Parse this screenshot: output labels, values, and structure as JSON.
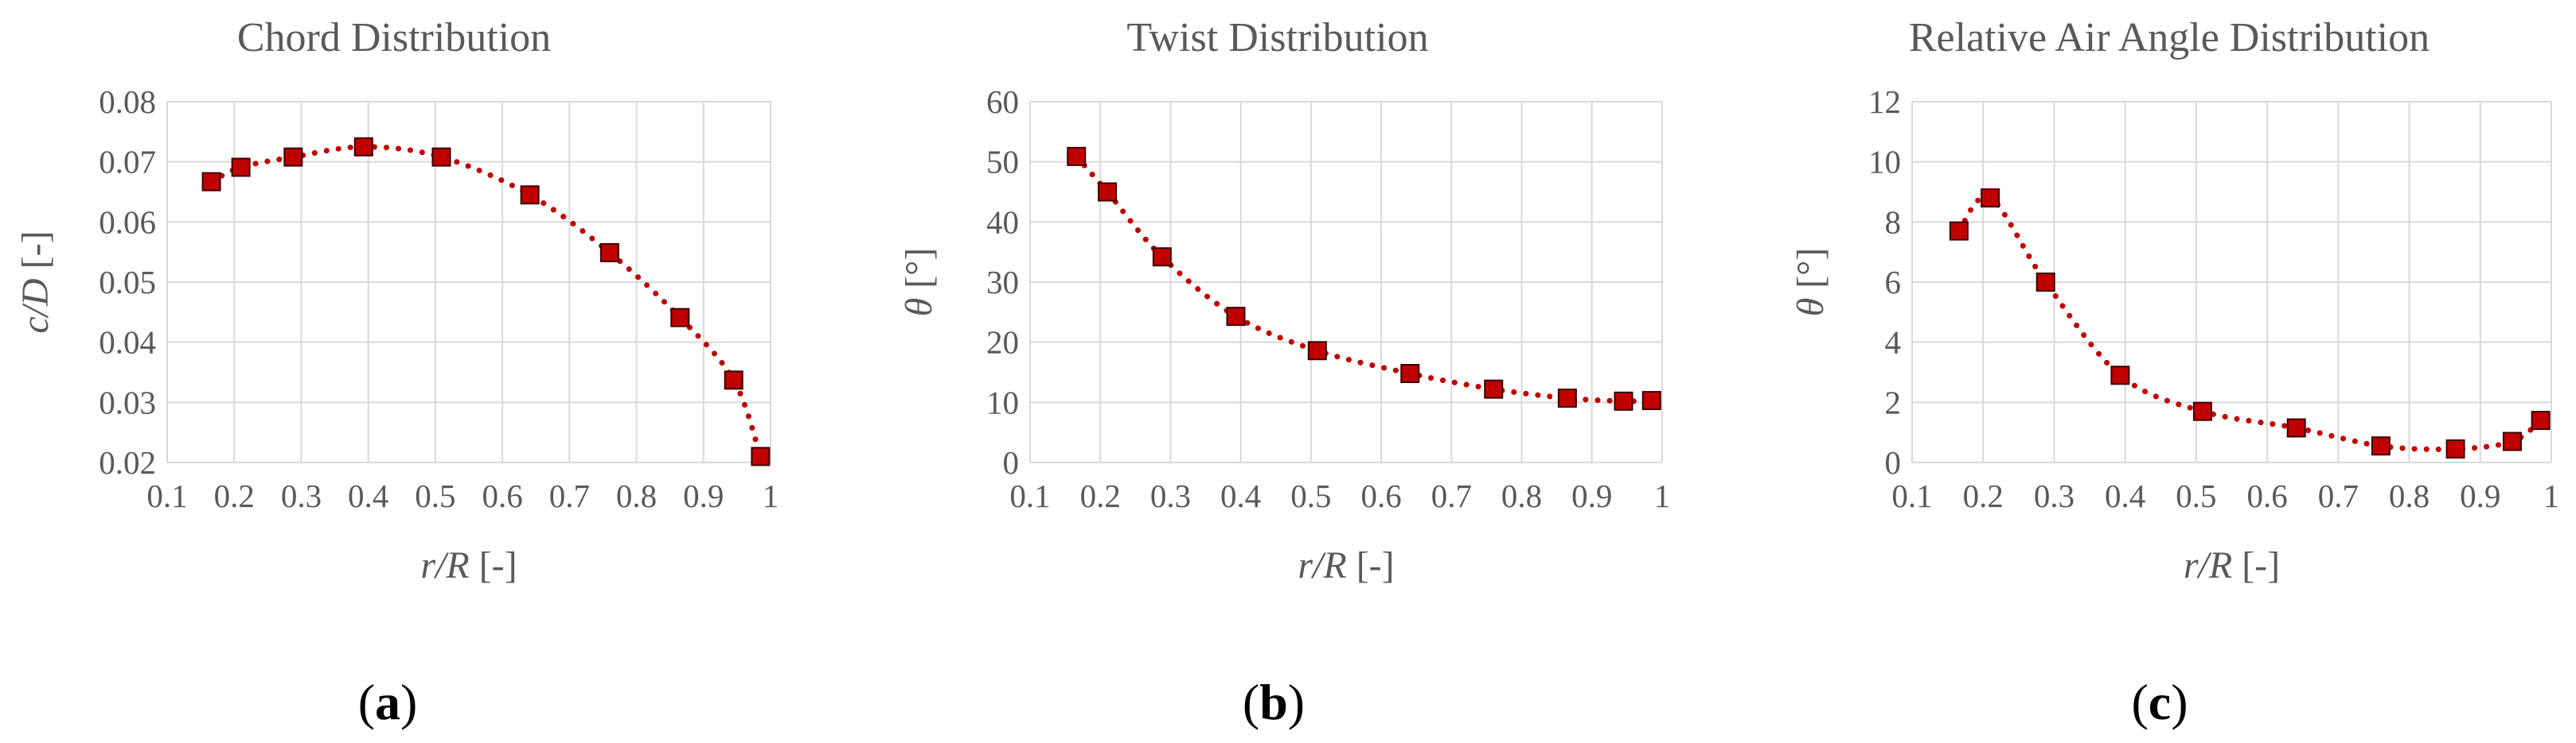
{
  "colors": {
    "series": "#c00000",
    "marker_fill": "#c00000",
    "marker_edge": "#3a0000",
    "grid": "#d9d9d9",
    "text": "#595959"
  },
  "chart_data": [
    {
      "type": "scatter",
      "title": "Chord Distribution",
      "xlabel_italic": "r/R",
      "xlabel_unit": " [-]",
      "ylabel_italic": "c/D",
      "ylabel_unit": " [-]",
      "panel_letter": "a",
      "xlim": [
        0.1,
        1
      ],
      "ylim": [
        0.02,
        0.08
      ],
      "xticks": [
        0.1,
        0.2,
        0.3,
        0.4,
        0.5,
        0.6,
        0.7,
        0.8,
        0.9,
        1
      ],
      "xtick_labels": [
        "0.1",
        "0.2",
        "0.3",
        "0.4",
        "0.5",
        "0.6",
        "0.7",
        "0.8",
        "0.9",
        "1"
      ],
      "yticks": [
        0.02,
        0.03,
        0.04,
        0.05,
        0.06,
        0.07,
        0.08
      ],
      "ytick_labels": [
        "0.02",
        "0.03",
        "0.04",
        "0.05",
        "0.06",
        "0.07",
        "0.08"
      ],
      "grid": true,
      "trendline": "dotted smooth",
      "x": [
        0.166,
        0.21,
        0.288,
        0.393,
        0.509,
        0.641,
        0.76,
        0.865,
        0.945,
        0.985
      ],
      "y": [
        0.0667,
        0.0691,
        0.0708,
        0.0725,
        0.0708,
        0.0645,
        0.0549,
        0.0441,
        0.0337,
        0.021
      ]
    },
    {
      "type": "scatter",
      "title": "Twist Distribution",
      "xlabel_italic": "r/R",
      "xlabel_unit": " [-]",
      "ylabel_italic": "θ",
      "ylabel_unit": " [°]",
      "panel_letter": "b",
      "xlim": [
        0.1,
        1
      ],
      "ylim": [
        0,
        60
      ],
      "xticks": [
        0.1,
        0.2,
        0.3,
        0.4,
        0.5,
        0.6,
        0.7,
        0.8,
        0.9,
        1
      ],
      "xtick_labels": [
        "0.1",
        "0.2",
        "0.3",
        "0.4",
        "0.5",
        "0.6",
        "0.7",
        "0.8",
        "0.9",
        "1"
      ],
      "yticks": [
        0,
        10,
        20,
        30,
        40,
        50,
        60
      ],
      "ytick_labels": [
        "0",
        "10",
        "20",
        "30",
        "40",
        "50",
        "60"
      ],
      "grid": true,
      "trendline": "dotted smooth",
      "x": [
        0.166,
        0.21,
        0.288,
        0.393,
        0.509,
        0.641,
        0.76,
        0.865,
        0.945,
        0.985
      ],
      "y": [
        50.9,
        45.0,
        34.2,
        24.3,
        18.6,
        14.8,
        12.2,
        10.7,
        10.2,
        10.3
      ]
    },
    {
      "type": "scatter",
      "title": "Relative Air Angle Distribution",
      "xlabel_italic": "r/R",
      "xlabel_unit": " [-]",
      "ylabel_italic": "θ",
      "ylabel_unit": " [°]",
      "panel_letter": "c",
      "xlim": [
        0.1,
        1
      ],
      "ylim": [
        0,
        12
      ],
      "xticks": [
        0.1,
        0.2,
        0.3,
        0.4,
        0.5,
        0.6,
        0.7,
        0.8,
        0.9,
        1
      ],
      "xtick_labels": [
        "0.1",
        "0.2",
        "0.3",
        "0.4",
        "0.5",
        "0.6",
        "0.7",
        "0.8",
        "0.9",
        "1"
      ],
      "yticks": [
        0,
        2,
        4,
        6,
        8,
        10,
        12
      ],
      "ytick_labels": [
        "0",
        "2",
        "4",
        "6",
        "8",
        "10",
        "12"
      ],
      "grid": true,
      "trendline": "dotted smooth",
      "x": [
        0.166,
        0.21,
        0.288,
        0.393,
        0.509,
        0.641,
        0.76,
        0.865,
        0.945,
        0.985
      ],
      "y": [
        7.7,
        8.8,
        6.0,
        2.9,
        1.7,
        1.15,
        0.55,
        0.45,
        0.7,
        1.4
      ]
    }
  ]
}
